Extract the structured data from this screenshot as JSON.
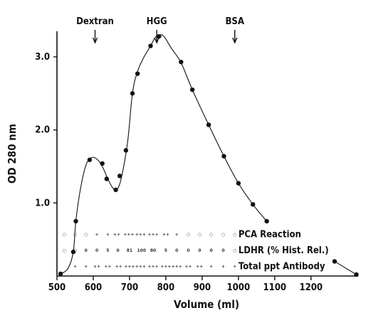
{
  "chart_data": {
    "type": "scatter",
    "xlabel": "Volume (ml)",
    "ylabel": "OD 280 nm",
    "xlim": [
      500,
      1330
    ],
    "ylim": [
      0,
      3.35
    ],
    "xticks": [
      500,
      600,
      700,
      800,
      900,
      1000,
      1100,
      1200
    ],
    "yticks": [
      {
        "value": 1.0,
        "label": "1.0"
      },
      {
        "value": 2.0,
        "label": "2.0"
      },
      {
        "value": 3.0,
        "label": "3.0"
      }
    ],
    "grid": false,
    "points": {
      "x": [
        510,
        545,
        552,
        590,
        625,
        637,
        662,
        673,
        690,
        708,
        722,
        758,
        781,
        842,
        873,
        918,
        960,
        1000,
        1040,
        1078,
        1265,
        1325
      ],
      "y": [
        0.03,
        0.33,
        0.75,
        1.59,
        1.54,
        1.33,
        1.18,
        1.37,
        1.72,
        2.5,
        2.77,
        3.15,
        3.28,
        2.93,
        2.55,
        2.07,
        1.64,
        1.27,
        0.98,
        0.75,
        0.2,
        0.02
      ]
    },
    "curve": {
      "x": [
        510,
        530,
        545,
        552,
        565,
        580,
        595,
        610,
        625,
        640,
        655,
        668,
        680,
        695,
        708,
        722,
        740,
        758,
        770,
        781,
        795,
        815,
        842,
        873,
        918,
        960,
        1000,
        1040,
        1078
      ],
      "y": [
        0.03,
        0.1,
        0.33,
        0.75,
        1.2,
        1.52,
        1.62,
        1.6,
        1.5,
        1.33,
        1.2,
        1.2,
        1.4,
        1.85,
        2.5,
        2.8,
        3.0,
        3.15,
        3.26,
        3.3,
        3.28,
        3.12,
        2.92,
        2.55,
        2.07,
        1.64,
        1.27,
        0.98,
        0.75
      ]
    },
    "tail": {
      "x": [
        1265,
        1325
      ],
      "y": [
        0.2,
        0.02
      ]
    },
    "markers": [
      {
        "label": "Dextran",
        "x": 605
      },
      {
        "label": "HGG",
        "x": 775
      },
      {
        "label": "BSA",
        "x": 990
      }
    ],
    "rows": [
      {
        "label": "PCA Reaction",
        "y": 0.57,
        "cells": [
          {
            "x": 520,
            "v": "○"
          },
          {
            "x": 550,
            "v": "○"
          },
          {
            "x": 580,
            "v": "○"
          },
          {
            "x": 610,
            "v": "+"
          },
          {
            "x": 640,
            "v": "+"
          },
          {
            "x": 665,
            "v": "++"
          },
          {
            "x": 698,
            "v": "+++"
          },
          {
            "x": 730,
            "v": "+++"
          },
          {
            "x": 765,
            "v": "+++"
          },
          {
            "x": 800,
            "v": "++"
          },
          {
            "x": 830,
            "v": "+"
          },
          {
            "x": 862,
            "v": "○"
          },
          {
            "x": 893,
            "v": "○"
          },
          {
            "x": 925,
            "v": "○"
          },
          {
            "x": 958,
            "v": "○"
          },
          {
            "x": 990,
            "v": "○"
          }
        ]
      },
      {
        "label": "LDHR (% Hist. Rel.)",
        "y": 0.35,
        "cells": [
          {
            "x": 520,
            "v": "○"
          },
          {
            "x": 550,
            "v": "○"
          },
          {
            "x": 580,
            "v": "0"
          },
          {
            "x": 610,
            "v": "0"
          },
          {
            "x": 640,
            "v": "5"
          },
          {
            "x": 668,
            "v": "0"
          },
          {
            "x": 700,
            "v": "81"
          },
          {
            "x": 733,
            "v": "100"
          },
          {
            "x": 765,
            "v": "80"
          },
          {
            "x": 800,
            "v": "5"
          },
          {
            "x": 830,
            "v": "0"
          },
          {
            "x": 862,
            "v": "0"
          },
          {
            "x": 893,
            "v": "0"
          },
          {
            "x": 925,
            "v": "0"
          },
          {
            "x": 958,
            "v": "0"
          },
          {
            "x": 990,
            "v": "○"
          }
        ]
      },
      {
        "label": "Total ppt Antibody",
        "y": 0.13,
        "cells": [
          {
            "x": 550,
            "v": "+"
          },
          {
            "x": 580,
            "v": "+"
          },
          {
            "x": 610,
            "v": "++"
          },
          {
            "x": 640,
            "v": "++"
          },
          {
            "x": 670,
            "v": "++"
          },
          {
            "x": 700,
            "v": "+++"
          },
          {
            "x": 730,
            "v": "+++"
          },
          {
            "x": 765,
            "v": "+++"
          },
          {
            "x": 800,
            "v": "+++"
          },
          {
            "x": 830,
            "v": "+++"
          },
          {
            "x": 862,
            "v": "++"
          },
          {
            "x": 893,
            "v": "++"
          },
          {
            "x": 925,
            "v": "+"
          },
          {
            "x": 958,
            "v": "+"
          },
          {
            "x": 990,
            "v": "+"
          }
        ]
      }
    ]
  }
}
